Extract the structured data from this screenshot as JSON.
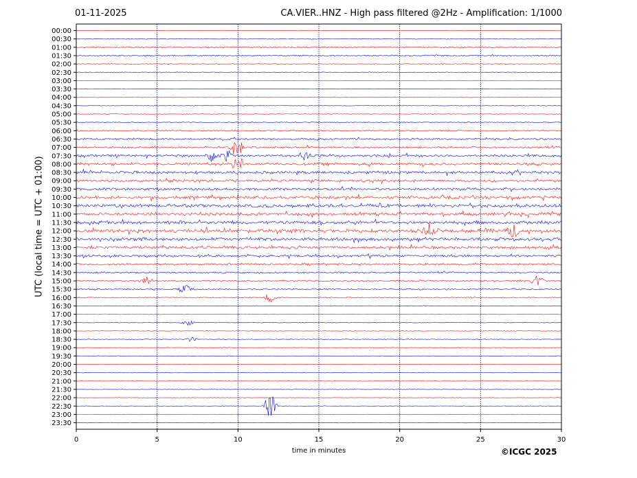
{
  "header": {
    "date": "01-11-2025",
    "title": "CA.VIER..HNZ - High pass filtered @2Hz - Amplification: 1/1000"
  },
  "footer": {
    "copyright": "©ICGC 2025"
  },
  "colors": {
    "trace_a": "#ff0000",
    "trace_b": "#0000ff",
    "grid": "#000080"
  },
  "chart_data": {
    "type": "line",
    "xlabel": "time in minutes",
    "ylabel": "UTC (local time = UTC + 01:00)",
    "xlim": [
      0,
      30
    ],
    "x_ticks": [
      0,
      5,
      10,
      15,
      20,
      25,
      30
    ],
    "vertical_grid_at": [
      5,
      10,
      15,
      20,
      25
    ],
    "rows": [
      "00:00",
      "00:30",
      "01:00",
      "01:30",
      "02:00",
      "02:30",
      "03:00",
      "03:30",
      "04:00",
      "04:30",
      "05:00",
      "05:30",
      "06:00",
      "06:30",
      "07:00",
      "07:30",
      "08:00",
      "08:30",
      "09:00",
      "09:30",
      "10:00",
      "10:30",
      "11:00",
      "11:30",
      "12:00",
      "12:30",
      "13:00",
      "13:30",
      "14:00",
      "14:30",
      "15:00",
      "15:30",
      "16:00",
      "16:30",
      "17:00",
      "17:30",
      "18:00",
      "18:30",
      "19:00",
      "19:30",
      "20:00",
      "20:30",
      "21:00",
      "21:30",
      "22:00",
      "22:30",
      "23:00",
      "23:30"
    ],
    "activity_level": [
      0.02,
      0.1,
      0.3,
      0.3,
      0.12,
      0.1,
      0.05,
      0.04,
      0.03,
      0.03,
      0.05,
      0.15,
      0.3,
      0.5,
      0.5,
      0.7,
      0.75,
      0.8,
      0.7,
      0.7,
      0.85,
      0.95,
      0.85,
      0.95,
      1.0,
      0.95,
      0.8,
      0.65,
      0.55,
      0.4,
      0.4,
      0.35,
      0.25,
      0.08,
      0.08,
      0.06,
      0.05,
      0.08,
      0.04,
      0.05,
      0.04,
      0.03,
      0.03,
      0.03,
      0.03,
      0.03,
      0.02,
      0.02
    ],
    "events": [
      {
        "row": "07:00",
        "minute": 9.9,
        "amplitude": 2.0
      },
      {
        "row": "07:30",
        "minute": 8.3,
        "amplitude": 1.0
      },
      {
        "row": "07:30",
        "minute": 9.3,
        "amplitude": 1.0
      },
      {
        "row": "07:30",
        "minute": 14.2,
        "amplitude": 0.9
      },
      {
        "row": "08:00",
        "minute": 10.0,
        "amplitude": 1.4
      },
      {
        "row": "12:00",
        "minute": 21.8,
        "amplitude": 1.0
      },
      {
        "row": "12:00",
        "minute": 27.0,
        "amplitude": 1.0
      },
      {
        "row": "15:00",
        "minute": 4.3,
        "amplitude": 0.8
      },
      {
        "row": "15:00",
        "minute": 28.5,
        "amplitude": 1.0
      },
      {
        "row": "15:30",
        "minute": 6.7,
        "amplitude": 0.8
      },
      {
        "row": "16:00",
        "minute": 12.0,
        "amplitude": 0.7
      },
      {
        "row": "17:30",
        "minute": 6.9,
        "amplitude": 0.5
      },
      {
        "row": "18:30",
        "minute": 7.1,
        "amplitude": 0.4
      },
      {
        "row": "22:30",
        "minute": 12.0,
        "amplitude": 2.2
      }
    ]
  }
}
